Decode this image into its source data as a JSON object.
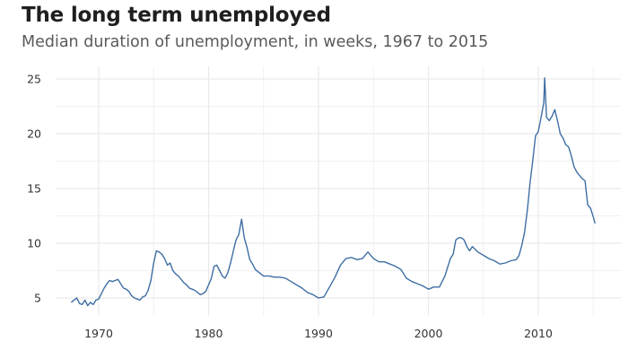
{
  "header": {
    "title": "The long term unemployed",
    "subtitle": "Median duration of unemployment, in weeks, 1967 to 2015"
  },
  "colors": {
    "line": "#3e6ea3",
    "grid": "#e9e9e9"
  },
  "chart_data": {
    "type": "line",
    "title": "The long term unemployed",
    "subtitle": "Median duration of unemployment, in weeks, 1967 to 2015",
    "xlabel": "",
    "ylabel": "",
    "xlim": [
      1967,
      2015.5
    ],
    "ylim": [
      3.5,
      26
    ],
    "x_ticks": [
      1970,
      1980,
      1990,
      2000,
      2010
    ],
    "y_ticks": [
      5,
      10,
      15,
      20,
      25
    ],
    "grid": true,
    "x": [
      1967.5,
      1967.75,
      1968.0,
      1968.25,
      1968.5,
      1968.75,
      1969.0,
      1969.25,
      1969.5,
      1969.75,
      1970.0,
      1970.25,
      1970.5,
      1970.75,
      1971.0,
      1971.25,
      1971.5,
      1971.75,
      1972.0,
      1972.25,
      1972.5,
      1972.75,
      1973.0,
      1973.25,
      1973.5,
      1973.75,
      1974.0,
      1974.25,
      1974.5,
      1974.75,
      1975.0,
      1975.25,
      1975.5,
      1975.75,
      1976.0,
      1976.25,
      1976.5,
      1976.75,
      1977.0,
      1977.25,
      1977.5,
      1977.75,
      1978.0,
      1978.25,
      1978.5,
      1978.75,
      1979.0,
      1979.25,
      1979.5,
      1979.75,
      1980.0,
      1980.25,
      1980.5,
      1980.75,
      1981.0,
      1981.25,
      1981.5,
      1981.75,
      1982.0,
      1982.25,
      1982.5,
      1982.75,
      1983.0,
      1983.25,
      1983.5,
      1983.75,
      1984.0,
      1984.25,
      1984.5,
      1984.75,
      1985.0,
      1985.5,
      1986.0,
      1986.5,
      1987.0,
      1987.5,
      1988.0,
      1988.5,
      1989.0,
      1989.5,
      1990.0,
      1990.5,
      1991.0,
      1991.5,
      1992.0,
      1992.5,
      1993.0,
      1993.5,
      1994.0,
      1994.5,
      1995.0,
      1995.5,
      1996.0,
      1996.5,
      1997.0,
      1997.5,
      1998.0,
      1998.5,
      1999.0,
      1999.5,
      2000.0,
      2000.5,
      2001.0,
      2001.5,
      2002.0,
      2002.25,
      2002.5,
      2002.75,
      2003.0,
      2003.25,
      2003.5,
      2003.75,
      2004.0,
      2004.5,
      2005.0,
      2005.5,
      2006.0,
      2006.5,
      2007.0,
      2007.5,
      2008.0,
      2008.25,
      2008.5,
      2008.75,
      2009.0,
      2009.25,
      2009.5,
      2009.75,
      2010.0,
      2010.25,
      2010.5,
      2010.58,
      2010.75,
      2011.0,
      2011.25,
      2011.5,
      2011.75,
      2012.0,
      2012.25,
      2012.5,
      2012.75,
      2013.0,
      2013.25,
      2013.5,
      2013.75,
      2014.0,
      2014.25,
      2014.5,
      2014.75,
      2015.0,
      2015.17
    ],
    "series": [
      {
        "values": [
          4.6,
          4.8,
          5.0,
          4.5,
          4.4,
          4.8,
          4.3,
          4.6,
          4.4,
          4.8,
          4.9,
          5.4,
          5.9,
          6.3,
          6.6,
          6.5,
          6.6,
          6.7,
          6.3,
          5.9,
          5.8,
          5.6,
          5.2,
          5.0,
          4.9,
          4.8,
          5.1,
          5.2,
          5.7,
          6.6,
          8.2,
          9.3,
          9.2,
          9.0,
          8.6,
          8.0,
          8.2,
          7.5,
          7.2,
          7.0,
          6.7,
          6.4,
          6.2,
          5.9,
          5.8,
          5.7,
          5.5,
          5.3,
          5.4,
          5.6,
          6.2,
          6.8,
          7.9,
          8.0,
          7.5,
          7.0,
          6.8,
          7.3,
          8.2,
          9.3,
          10.3,
          10.8,
          12.2,
          10.5,
          9.6,
          8.5,
          8.1,
          7.6,
          7.4,
          7.2,
          7.0,
          7.0,
          6.9,
          6.9,
          6.8,
          6.5,
          6.2,
          5.9,
          5.5,
          5.3,
          5.0,
          5.1,
          6.0,
          6.9,
          8.0,
          8.6,
          8.7,
          8.5,
          8.6,
          9.2,
          8.6,
          8.3,
          8.3,
          8.1,
          7.9,
          7.6,
          6.8,
          6.5,
          6.3,
          6.1,
          5.8,
          6.0,
          6.0,
          7.0,
          8.6,
          9.0,
          10.3,
          10.5,
          10.5,
          10.3,
          9.7,
          9.3,
          9.7,
          9.2,
          8.9,
          8.6,
          8.4,
          8.1,
          8.2,
          8.4,
          8.5,
          8.9,
          9.8,
          11.0,
          13.0,
          15.5,
          17.6,
          19.8,
          20.2,
          21.5,
          22.8,
          25.1,
          21.5,
          21.2,
          21.6,
          22.2,
          21.2,
          20.0,
          19.6,
          19.0,
          18.8,
          18.0,
          17.0,
          16.5,
          16.2,
          15.9,
          15.7,
          13.5,
          13.2,
          12.4,
          11.8
        ]
      }
    ]
  }
}
